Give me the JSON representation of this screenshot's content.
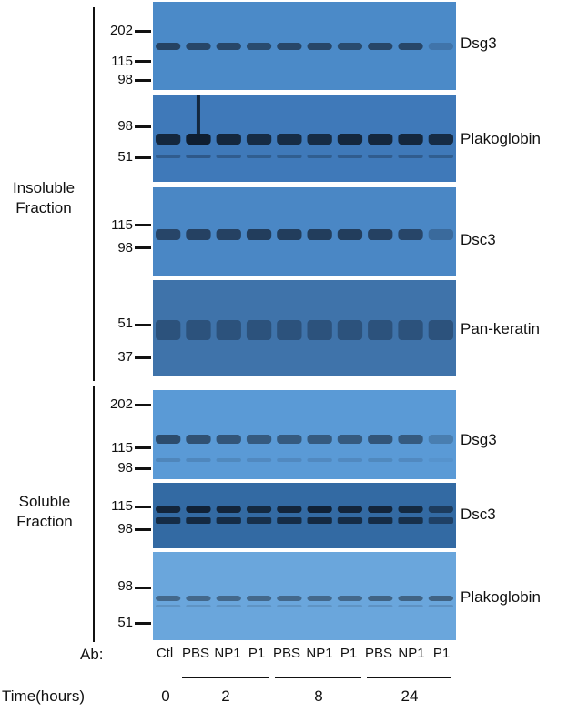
{
  "groups": {
    "insoluble": {
      "label": "Insoluble Fraction"
    },
    "soluble": {
      "label": "Soluble Fraction"
    }
  },
  "panels": [
    {
      "antibody": "Dsg3",
      "markers": [
        "202",
        "115",
        "98"
      ],
      "bg": "#4b8ac8",
      "band": "#1e3550",
      "intensity": [
        0.85,
        0.8,
        0.8,
        0.75,
        0.8,
        0.8,
        0.75,
        0.8,
        0.8,
        0.25
      ]
    },
    {
      "antibody": "Plakoglobin",
      "markers": [
        "98",
        "51"
      ],
      "bg": "#3f79b9",
      "band": "#0f1e30",
      "intensity": [
        0.9,
        1.0,
        0.9,
        0.85,
        0.85,
        0.85,
        0.9,
        0.9,
        0.9,
        0.85
      ]
    },
    {
      "antibody": "Dsc3",
      "markers": [
        "115",
        "98"
      ],
      "bg": "#4a87c5",
      "band": "#1e3550",
      "intensity": [
        0.8,
        0.85,
        0.85,
        0.9,
        0.9,
        0.9,
        0.9,
        0.85,
        0.8,
        0.35
      ]
    },
    {
      "antibody": "Pan-keratin",
      "markers": [
        "51",
        "37"
      ],
      "bg": "#3f73aa",
      "band": "#1f3c5e",
      "intensity": [
        0.6,
        0.6,
        0.6,
        0.6,
        0.6,
        0.6,
        0.6,
        0.6,
        0.6,
        0.6
      ]
    },
    {
      "antibody": "Dsg3",
      "markers": [
        "202",
        "115",
        "98"
      ],
      "bg": "#5a9ad6",
      "band": "#253e5a",
      "intensity": [
        0.85,
        0.8,
        0.75,
        0.7,
        0.7,
        0.7,
        0.7,
        0.75,
        0.7,
        0.3
      ]
    },
    {
      "antibody": "Dsc3",
      "markers": [
        "115",
        "98"
      ],
      "bg": "#336aa3",
      "band": "#0f1e30",
      "intensity": [
        0.9,
        0.95,
        0.9,
        0.85,
        0.9,
        0.95,
        0.9,
        0.9,
        0.85,
        0.6
      ]
    },
    {
      "antibody": "Plakoglobin",
      "markers": [
        "98",
        "51"
      ],
      "bg": "#6aa6dc",
      "band": "#2a3f55",
      "intensity": [
        0.6,
        0.6,
        0.6,
        0.6,
        0.6,
        0.6,
        0.6,
        0.65,
        0.65,
        0.65
      ]
    }
  ],
  "lanes": {
    "row_label": "Ab:",
    "labels": [
      "Ctl",
      "PBS",
      "NP1",
      "P1",
      "PBS",
      "NP1",
      "P1",
      "PBS",
      "NP1",
      "P1"
    ]
  },
  "time": {
    "row_label": "Time(hours)",
    "values": [
      "0",
      "2",
      "8",
      "24"
    ]
  }
}
